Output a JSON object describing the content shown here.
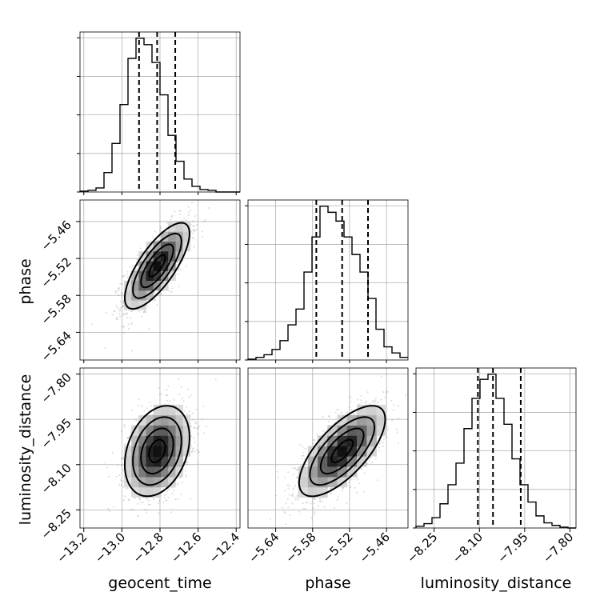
{
  "chart_data": {
    "type": "corner",
    "parameters": [
      "geocent_time",
      "phase",
      "luminosity_distance"
    ],
    "axes": {
      "geocent_time": {
        "label": "geocent_time",
        "range": [
          -13.22,
          -12.38
        ],
        "ticks": [
          -13.2,
          -13.0,
          -12.8,
          -12.6,
          -12.4
        ],
        "tick_labels": [
          "−13.2",
          "−13.0",
          "−12.8",
          "−12.6",
          "−12.4"
        ]
      },
      "phase": {
        "label": "phase",
        "range": [
          -5.685,
          -5.425
        ],
        "ticks": [
          -5.64,
          -5.58,
          -5.52,
          -5.46
        ],
        "tick_labels": [
          "−5.64",
          "−5.58",
          "−5.52",
          "−5.46"
        ]
      },
      "luminosity_distance": {
        "label": "luminosity_distance",
        "range": [
          -8.31,
          -7.78
        ],
        "ticks": [
          -8.25,
          -8.1,
          -7.95,
          -7.8
        ],
        "tick_labels": [
          "−8.25",
          "−8.10",
          "−7.95",
          "−7.80"
        ]
      }
    },
    "histograms": {
      "geocent_time": {
        "bin_edges": [
          -13.22,
          -13.178,
          -13.136,
          -13.094,
          -13.052,
          -13.01,
          -12.968,
          -12.926,
          -12.884,
          -12.842,
          -12.8,
          -12.758,
          -12.716,
          -12.674,
          -12.632,
          -12.59,
          -12.548,
          -12.506,
          -12.464,
          -12.422,
          -12.38
        ],
        "counts": [
          1,
          2,
          5,
          24,
          60,
          108,
          165,
          190,
          182,
          160,
          120,
          70,
          38,
          16,
          7,
          3,
          2,
          0,
          0,
          0
        ],
        "quantiles": [
          -12.91,
          -12.815,
          -12.72
        ]
      },
      "phase": {
        "bin_edges": [
          -5.685,
          -5.672,
          -5.659,
          -5.646,
          -5.633,
          -5.62,
          -5.607,
          -5.594,
          -5.581,
          -5.568,
          -5.555,
          -5.542,
          -5.529,
          -5.516,
          -5.503,
          -5.49,
          -5.477,
          -5.464,
          -5.451,
          -5.438,
          -5.425
        ],
        "counts": [
          1,
          3,
          6,
          12,
          22,
          40,
          58,
          100,
          140,
          175,
          168,
          158,
          140,
          120,
          100,
          70,
          35,
          15,
          8,
          3
        ],
        "quantiles": [
          -5.574,
          -5.532,
          -5.49
        ]
      },
      "luminosity_distance": {
        "bin_edges": [
          -8.31,
          -8.2835,
          -8.257,
          -8.2305,
          -8.204,
          -8.1775,
          -8.151,
          -8.1245,
          -8.098,
          -8.0715,
          -8.045,
          -8.0185,
          -7.992,
          -7.9655,
          -7.939,
          -7.9125,
          -7.886,
          -7.8595,
          -7.833,
          -7.8065,
          -7.78
        ],
        "counts": [
          2,
          5,
          12,
          28,
          50,
          75,
          115,
          150,
          172,
          178,
          150,
          120,
          80,
          50,
          30,
          14,
          6,
          3,
          1,
          0
        ],
        "quantiles": [
          -8.105,
          -8.055,
          -7.963
        ]
      }
    },
    "correlations": [
      {
        "x": "geocent_time",
        "y": "phase",
        "mean": [
          -12.815,
          -5.532
        ],
        "sd": [
          0.085,
          0.035
        ],
        "rho": 0.75
      },
      {
        "x": "geocent_time",
        "y": "luminosity_distance",
        "mean": [
          -12.815,
          -8.055
        ],
        "sd": [
          0.085,
          0.075
        ],
        "rho": 0.3
      },
      {
        "x": "phase",
        "y": "luminosity_distance",
        "mean": [
          -5.532,
          -8.055
        ],
        "sd": [
          0.035,
          0.075
        ],
        "rho": 0.7
      }
    ],
    "grid": true,
    "colors": {
      "line": "#000000",
      "points": "#555555",
      "grid": "#b0b0b0",
      "density": "#000000"
    }
  }
}
